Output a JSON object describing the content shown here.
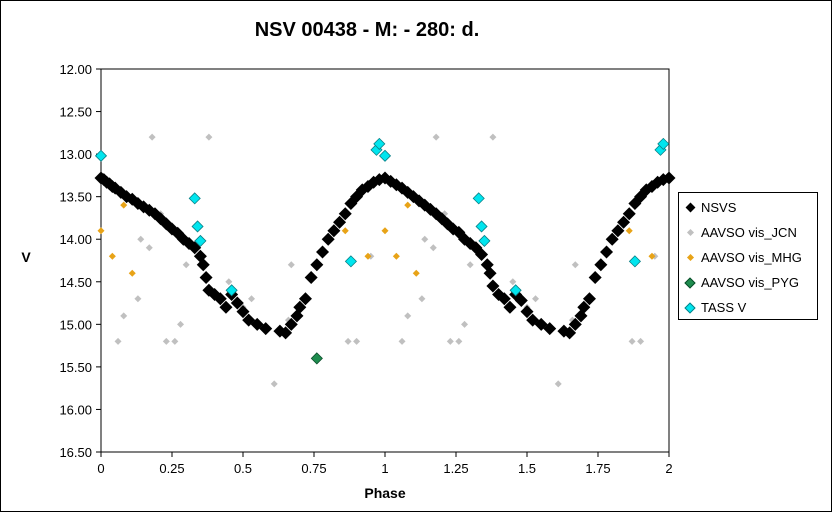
{
  "chart_data": {
    "type": "scatter",
    "title": "NSV 00438 - M: - 280: d.",
    "xlabel": "Phase",
    "ylabel": "V",
    "xlim": [
      0,
      2
    ],
    "ylim": [
      12.0,
      16.5
    ],
    "y_inverted": true,
    "x_ticks": [
      "0",
      "0.25",
      "0.5",
      "0.75",
      "1",
      "1.25",
      "1.5",
      "1.75",
      "2"
    ],
    "y_ticks": [
      "12.00",
      "12.50",
      "13.00",
      "13.50",
      "14.00",
      "14.50",
      "15.00",
      "15.50",
      "16.00",
      "16.50"
    ],
    "grid": false,
    "legend_position": "right",
    "series": [
      {
        "name": "NSVS",
        "color": "#000000",
        "marker": "diamond-large",
        "points": [
          [
            0.0,
            13.28
          ],
          [
            0.01,
            13.3
          ],
          [
            0.02,
            13.33
          ],
          [
            0.03,
            13.35
          ],
          [
            0.04,
            13.38
          ],
          [
            0.05,
            13.4
          ],
          [
            0.07,
            13.45
          ],
          [
            0.09,
            13.5
          ],
          [
            0.11,
            13.53
          ],
          [
            0.13,
            13.58
          ],
          [
            0.15,
            13.62
          ],
          [
            0.17,
            13.66
          ],
          [
            0.19,
            13.7
          ],
          [
            0.21,
            13.76
          ],
          [
            0.23,
            13.82
          ],
          [
            0.25,
            13.88
          ],
          [
            0.27,
            13.93
          ],
          [
            0.29,
            14.0
          ],
          [
            0.31,
            14.05
          ],
          [
            0.33,
            14.1
          ],
          [
            0.35,
            14.2
          ],
          [
            0.36,
            14.3
          ],
          [
            0.37,
            14.45
          ],
          [
            0.38,
            14.6
          ],
          [
            0.4,
            14.65
          ],
          [
            0.42,
            14.7
          ],
          [
            0.44,
            14.8
          ],
          [
            0.46,
            14.65
          ],
          [
            0.48,
            14.75
          ],
          [
            0.5,
            14.85
          ],
          [
            0.52,
            14.95
          ],
          [
            0.55,
            15.0
          ],
          [
            0.58,
            15.05
          ],
          [
            0.63,
            15.08
          ],
          [
            0.65,
            15.1
          ],
          [
            0.67,
            15.0
          ],
          [
            0.69,
            14.9
          ],
          [
            0.7,
            14.8
          ],
          [
            0.72,
            14.7
          ],
          [
            0.74,
            14.45
          ],
          [
            0.76,
            14.3
          ],
          [
            0.78,
            14.15
          ],
          [
            0.8,
            14.0
          ],
          [
            0.82,
            13.9
          ],
          [
            0.84,
            13.8
          ],
          [
            0.86,
            13.7
          ],
          [
            0.88,
            13.58
          ],
          [
            0.9,
            13.5
          ],
          [
            0.92,
            13.42
          ],
          [
            0.94,
            13.38
          ],
          [
            0.96,
            13.33
          ],
          [
            0.98,
            13.3
          ],
          [
            1.0,
            13.28
          ],
          [
            1.02,
            13.32
          ],
          [
            1.04,
            13.36
          ],
          [
            1.06,
            13.4
          ],
          [
            1.08,
            13.45
          ],
          [
            1.1,
            13.5
          ],
          [
            1.12,
            13.55
          ],
          [
            1.14,
            13.6
          ],
          [
            1.16,
            13.65
          ],
          [
            1.18,
            13.7
          ],
          [
            1.2,
            13.76
          ],
          [
            1.22,
            13.82
          ],
          [
            1.24,
            13.88
          ],
          [
            1.26,
            13.92
          ],
          [
            1.28,
            14.0
          ],
          [
            1.3,
            14.05
          ],
          [
            1.32,
            14.1
          ],
          [
            1.34,
            14.18
          ],
          [
            1.36,
            14.3
          ],
          [
            1.37,
            14.4
          ],
          [
            1.38,
            14.55
          ],
          [
            1.4,
            14.65
          ],
          [
            1.42,
            14.7
          ],
          [
            1.44,
            14.8
          ],
          [
            1.46,
            14.65
          ],
          [
            1.48,
            14.72
          ],
          [
            1.5,
            14.85
          ],
          [
            1.52,
            14.95
          ],
          [
            1.55,
            15.0
          ],
          [
            1.58,
            15.05
          ],
          [
            1.63,
            15.08
          ],
          [
            1.65,
            15.1
          ],
          [
            1.67,
            15.0
          ],
          [
            1.69,
            14.9
          ],
          [
            1.7,
            14.8
          ],
          [
            1.72,
            14.7
          ],
          [
            1.74,
            14.45
          ],
          [
            1.76,
            14.3
          ],
          [
            1.78,
            14.15
          ],
          [
            1.8,
            14.0
          ],
          [
            1.82,
            13.9
          ],
          [
            1.84,
            13.8
          ],
          [
            1.86,
            13.7
          ],
          [
            1.88,
            13.58
          ],
          [
            1.9,
            13.5
          ],
          [
            1.92,
            13.42
          ],
          [
            1.94,
            13.38
          ],
          [
            1.96,
            13.33
          ],
          [
            1.98,
            13.3
          ],
          [
            2.0,
            13.28
          ]
        ]
      },
      {
        "name": "AAVSO vis_JCN",
        "color": "#c0c0c0",
        "marker": "diamond-small",
        "points": [
          [
            0.06,
            15.2
          ],
          [
            0.08,
            14.9
          ],
          [
            0.13,
            14.7
          ],
          [
            0.14,
            14.0
          ],
          [
            0.17,
            14.1
          ],
          [
            0.18,
            12.8
          ],
          [
            0.21,
            13.7
          ],
          [
            0.23,
            15.2
          ],
          [
            0.26,
            15.2
          ],
          [
            0.28,
            15.0
          ],
          [
            0.3,
            14.3
          ],
          [
            0.38,
            12.8
          ],
          [
            0.45,
            14.5
          ],
          [
            0.5,
            14.8
          ],
          [
            0.53,
            14.7
          ],
          [
            0.61,
            15.7
          ],
          [
            0.66,
            14.95
          ],
          [
            0.67,
            14.3
          ],
          [
            0.87,
            15.2
          ],
          [
            0.9,
            15.2
          ],
          [
            0.95,
            14.2
          ],
          [
            1.06,
            15.2
          ],
          [
            1.08,
            14.9
          ],
          [
            1.13,
            14.7
          ],
          [
            1.14,
            14.0
          ],
          [
            1.17,
            14.1
          ],
          [
            1.18,
            12.8
          ],
          [
            1.21,
            13.7
          ],
          [
            1.23,
            15.2
          ],
          [
            1.26,
            15.2
          ],
          [
            1.28,
            15.0
          ],
          [
            1.3,
            14.3
          ],
          [
            1.38,
            12.8
          ],
          [
            1.45,
            14.5
          ],
          [
            1.5,
            14.8
          ],
          [
            1.53,
            14.7
          ],
          [
            1.61,
            15.7
          ],
          [
            1.66,
            14.95
          ],
          [
            1.67,
            14.3
          ],
          [
            1.87,
            15.2
          ],
          [
            1.9,
            15.2
          ],
          [
            1.95,
            14.2
          ]
        ]
      },
      {
        "name": "AAVSO vis_MHG",
        "color": "#e8a317",
        "marker": "diamond-small",
        "points": [
          [
            0.0,
            13.9
          ],
          [
            0.04,
            14.2
          ],
          [
            0.08,
            13.6
          ],
          [
            0.11,
            14.4
          ],
          [
            0.86,
            13.9
          ],
          [
            0.94,
            14.2
          ],
          [
            1.0,
            13.9
          ],
          [
            1.04,
            14.2
          ],
          [
            1.08,
            13.6
          ],
          [
            1.11,
            14.4
          ],
          [
            1.86,
            13.9
          ],
          [
            1.94,
            14.2
          ]
        ]
      },
      {
        "name": "AAVSO vis_PYG",
        "color": "#1e8c4e",
        "marker": "diamond-medium",
        "points": [
          [
            0.76,
            15.4
          ]
        ]
      },
      {
        "name": "TASS V",
        "color": "#00e5ee",
        "marker": "diamond-medium",
        "points": [
          [
            0.0,
            13.02
          ],
          [
            0.33,
            13.52
          ],
          [
            0.34,
            13.85
          ],
          [
            0.35,
            14.02
          ],
          [
            0.46,
            14.6
          ],
          [
            0.88,
            14.26
          ],
          [
            0.97,
            12.95
          ],
          [
            0.98,
            12.88
          ],
          [
            1.0,
            13.02
          ],
          [
            1.33,
            13.52
          ],
          [
            1.34,
            13.85
          ],
          [
            1.35,
            14.02
          ],
          [
            1.46,
            14.6
          ],
          [
            1.88,
            14.26
          ],
          [
            1.97,
            12.95
          ],
          [
            1.98,
            12.88
          ]
        ]
      }
    ]
  }
}
